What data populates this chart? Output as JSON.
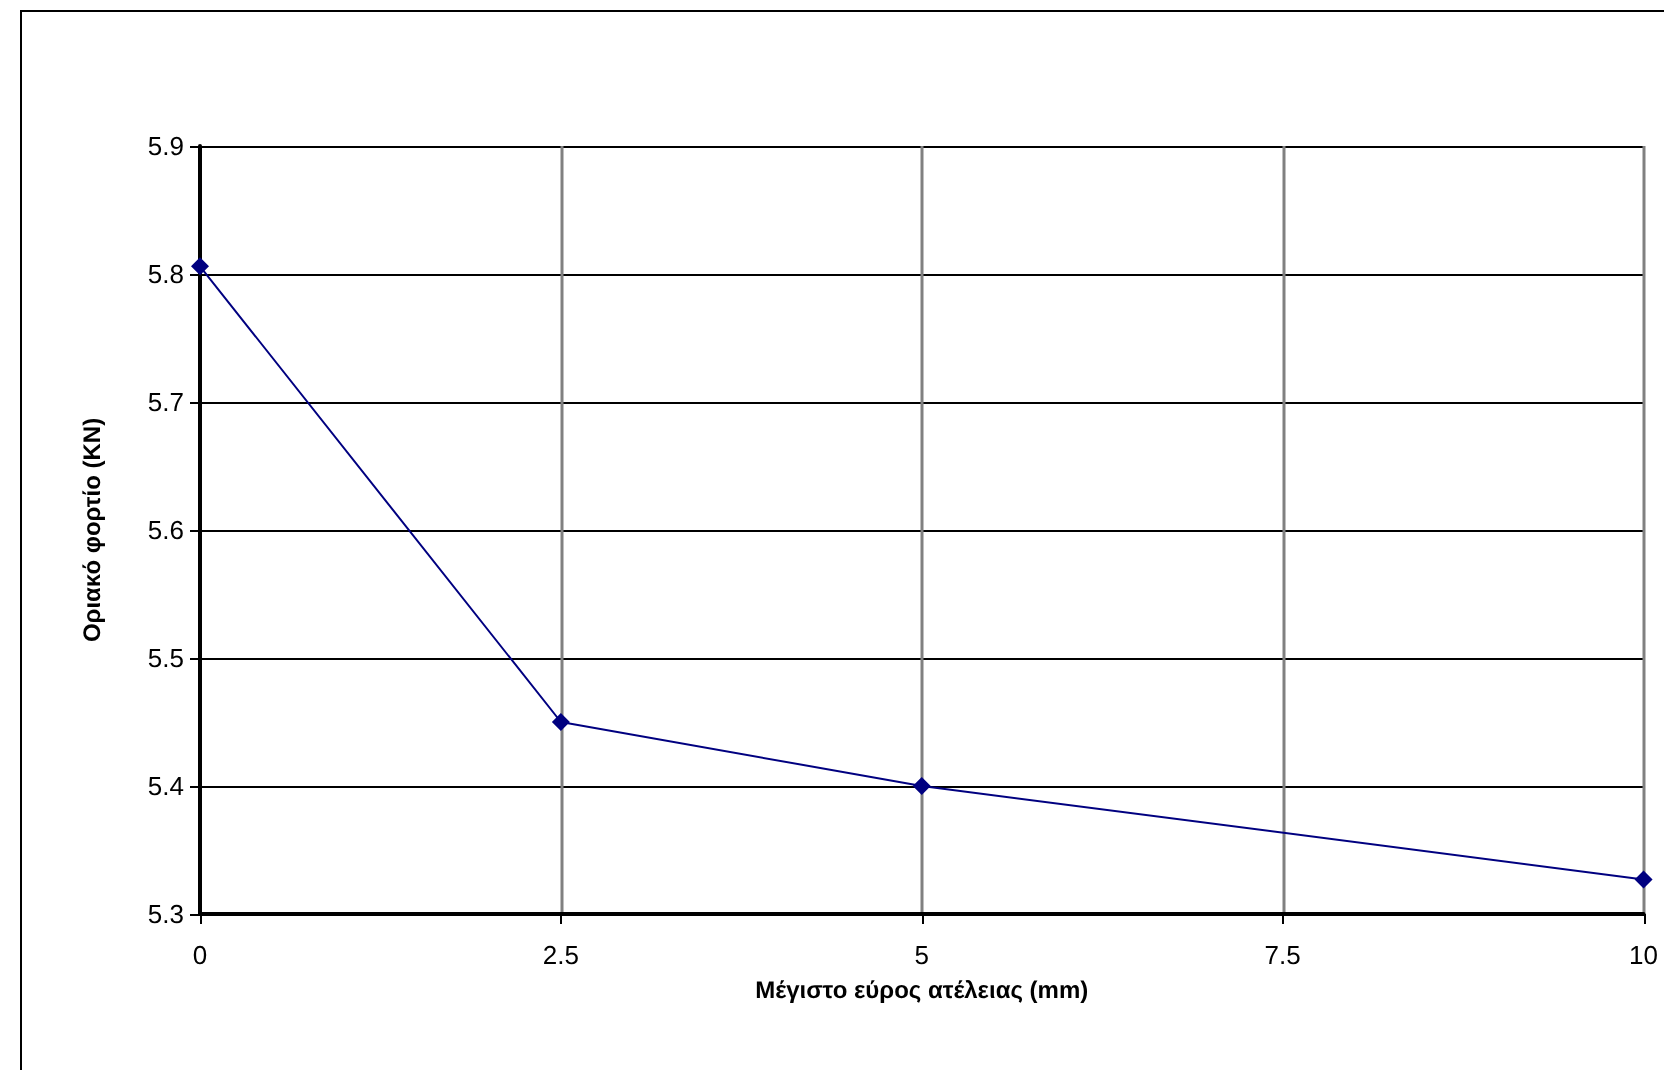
{
  "chart_data": {
    "type": "line",
    "xlabel": "Μέγιστο εύρος ατέλειας (mm)",
    "ylabel": "Οριακό φορτίο (KN)",
    "x": [
      0,
      2.5,
      5,
      10
    ],
    "series": [
      {
        "color": "#000080",
        "values": [
          5.806,
          5.45,
          5.4,
          5.327
        ]
      }
    ],
    "xlim": [
      0,
      10
    ],
    "xticks": [
      0,
      2.5,
      5,
      7.5,
      10
    ],
    "ylim": [
      5.3,
      5.9
    ],
    "yticks": [
      5.3,
      5.4,
      5.5,
      5.6,
      5.7,
      5.8,
      5.9
    ],
    "grid": true,
    "marker": "diamond",
    "line_style": "solid"
  }
}
